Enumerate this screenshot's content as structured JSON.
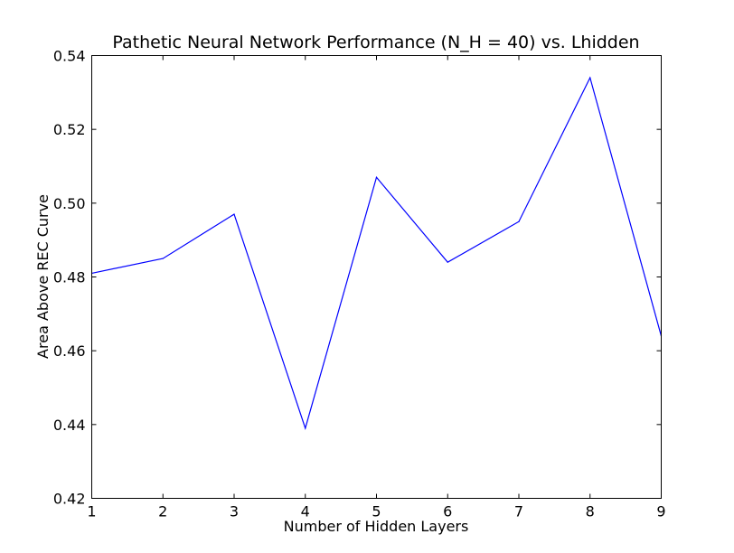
{
  "chart_data": {
    "type": "line",
    "title": "Pathetic Neural Network Performance (N_H = 40) vs. Lhidden",
    "xlabel": "Number of Hidden Layers",
    "ylabel": "Area Above REC Curve",
    "x": [
      1,
      2,
      3,
      4,
      5,
      6,
      7,
      8,
      9
    ],
    "series": [
      {
        "values": [
          0.481,
          0.485,
          0.497,
          0.439,
          0.507,
          0.484,
          0.495,
          0.534,
          0.464
        ],
        "color": "#0000ff"
      }
    ],
    "xlim": [
      1,
      9
    ],
    "ylim": [
      0.42,
      0.54
    ],
    "xticks": [
      "1",
      "2",
      "3",
      "4",
      "5",
      "6",
      "7",
      "8",
      "9"
    ],
    "yticks": [
      "0.42",
      "0.44",
      "0.46",
      "0.48",
      "0.50",
      "0.52",
      "0.54"
    ],
    "grid": false,
    "legend": "none"
  }
}
